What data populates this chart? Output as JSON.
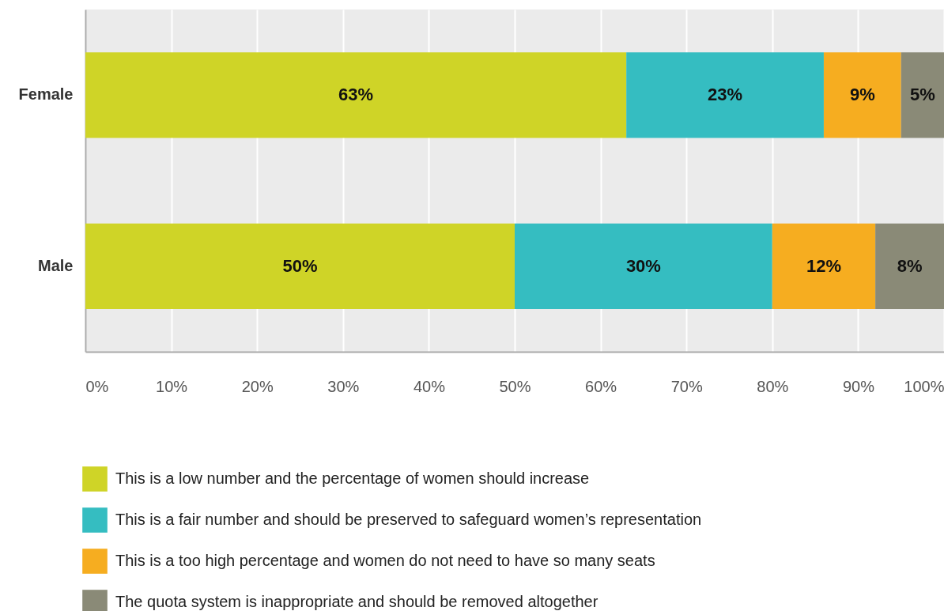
{
  "chart_data": {
    "type": "bar",
    "orientation": "horizontal",
    "stacked": true,
    "categories": [
      "Female",
      "Male"
    ],
    "series": [
      {
        "name": "This is a low number and the percentage of women should increase",
        "color": "#cfd427",
        "values": [
          63,
          50
        ],
        "value_labels": [
          "63%",
          "50%"
        ]
      },
      {
        "name": "This is a fair number and should be preserved to safeguard women’s representation",
        "color": "#35bdc1",
        "values": [
          23,
          30
        ],
        "value_labels": [
          "23%",
          "30%"
        ]
      },
      {
        "name": "This is a too high percentage and women do not need to have so many seats",
        "color": "#f6ad20",
        "values": [
          9,
          12
        ],
        "value_labels": [
          "9%",
          "12%"
        ]
      },
      {
        "name": "The quota system is inappropriate and should be removed altogether",
        "color": "#8a8a77",
        "values": [
          5,
          8
        ],
        "value_labels": [
          "5%",
          "8%"
        ]
      }
    ],
    "xlim": [
      0,
      100
    ],
    "xticks": [
      {
        "value": 0,
        "label": "0%"
      },
      {
        "value": 10,
        "label": "10%"
      },
      {
        "value": 20,
        "label": "20%"
      },
      {
        "value": 30,
        "label": "30%"
      },
      {
        "value": 40,
        "label": "40%"
      },
      {
        "value": 50,
        "label": "50%"
      },
      {
        "value": 60,
        "label": "60%"
      },
      {
        "value": 70,
        "label": "70%"
      },
      {
        "value": 80,
        "label": "80%"
      },
      {
        "value": 90,
        "label": "90%"
      },
      {
        "value": 100,
        "label": "100%"
      }
    ],
    "grid": "x",
    "legend": "bottom"
  }
}
